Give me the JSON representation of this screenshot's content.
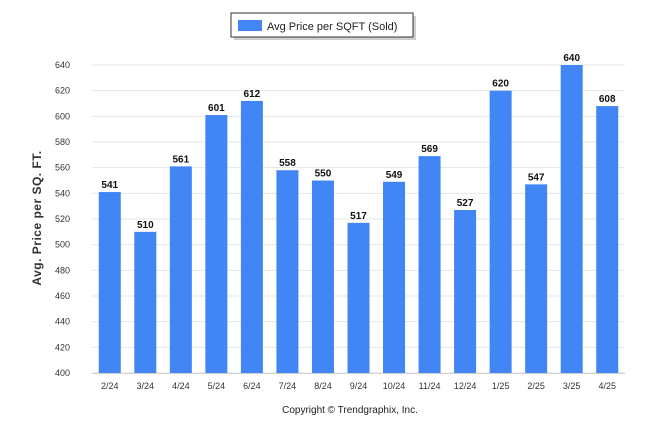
{
  "legend": {
    "label": "Avg Price per SQFT (Sold)"
  },
  "copyright": "Copyright © Trendgraphix, Inc.",
  "colors": {
    "bar": "#4285f4",
    "grid": "#e6e6e6"
  },
  "chart_data": {
    "type": "bar",
    "title": "",
    "xlabel": "",
    "ylabel": "Avg. Price per SQ. FT.",
    "ylim": [
      400,
      640
    ],
    "yticks": [
      400,
      420,
      440,
      460,
      480,
      500,
      520,
      540,
      560,
      580,
      600,
      620,
      640
    ],
    "grid": true,
    "legend_position": "top-center",
    "categories": [
      "2/24",
      "3/24",
      "4/24",
      "5/24",
      "6/24",
      "7/24",
      "8/24",
      "9/24",
      "10/24",
      "11/24",
      "12/24",
      "1/25",
      "2/25",
      "3/25",
      "4/25"
    ],
    "series": [
      {
        "name": "Avg Price per SQFT (Sold)",
        "values": [
          541,
          510,
          561,
          601,
          612,
          558,
          550,
          517,
          549,
          569,
          527,
          620,
          547,
          640,
          608
        ]
      }
    ]
  }
}
